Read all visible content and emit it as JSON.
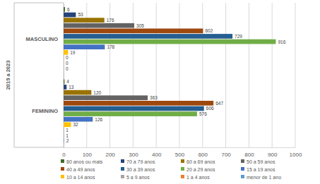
{
  "chart_data": {
    "type": "bar",
    "orientation": "horizontal",
    "ylabel": "2019 a 2023",
    "categories": [
      "MASCULINO",
      "FEMININO"
    ],
    "series": [
      {
        "name": "80 anos ou mais",
        "color": "#43682b",
        "values": [
          6,
          4
        ]
      },
      {
        "name": "70 a 79 anos",
        "color": "#264478",
        "values": [
          53,
          13
        ]
      },
      {
        "name": "60 a 69 anos",
        "color": "#997300",
        "values": [
          176,
          120
        ]
      },
      {
        "name": "50 a 59 anos",
        "color": "#636363",
        "values": [
          305,
          363
        ]
      },
      {
        "name": "40 a 49 anos",
        "color": "#9e480e",
        "values": [
          602,
          647
        ]
      },
      {
        "name": "30 a 39 anos",
        "color": "#255e91",
        "values": [
          729,
          606
        ]
      },
      {
        "name": "20 a 29 anos",
        "color": "#70ad47",
        "values": [
          916,
          576
        ]
      },
      {
        "name": "15 a 19 anos",
        "color": "#4472c4",
        "values": [
          178,
          126
        ]
      },
      {
        "name": "10 a 14 anos",
        "color": "#ffc000",
        "values": [
          19,
          32
        ]
      },
      {
        "name": "5 a 9 anos",
        "color": "#a5a5a5",
        "values": [
          0,
          1
        ]
      },
      {
        "name": "1 a 4 anos",
        "color": "#ed7d31",
        "values": [
          0,
          1
        ]
      },
      {
        "name": "menor de 1 ano",
        "color": "#5b9bd5",
        "values": [
          0,
          2
        ]
      }
    ],
    "xlim": [
      0,
      1000
    ],
    "xticks": [
      0,
      100,
      200,
      300,
      400,
      500,
      600,
      700,
      800,
      900,
      1000
    ],
    "grid": true,
    "data_labels": true,
    "legend": "bottom"
  }
}
